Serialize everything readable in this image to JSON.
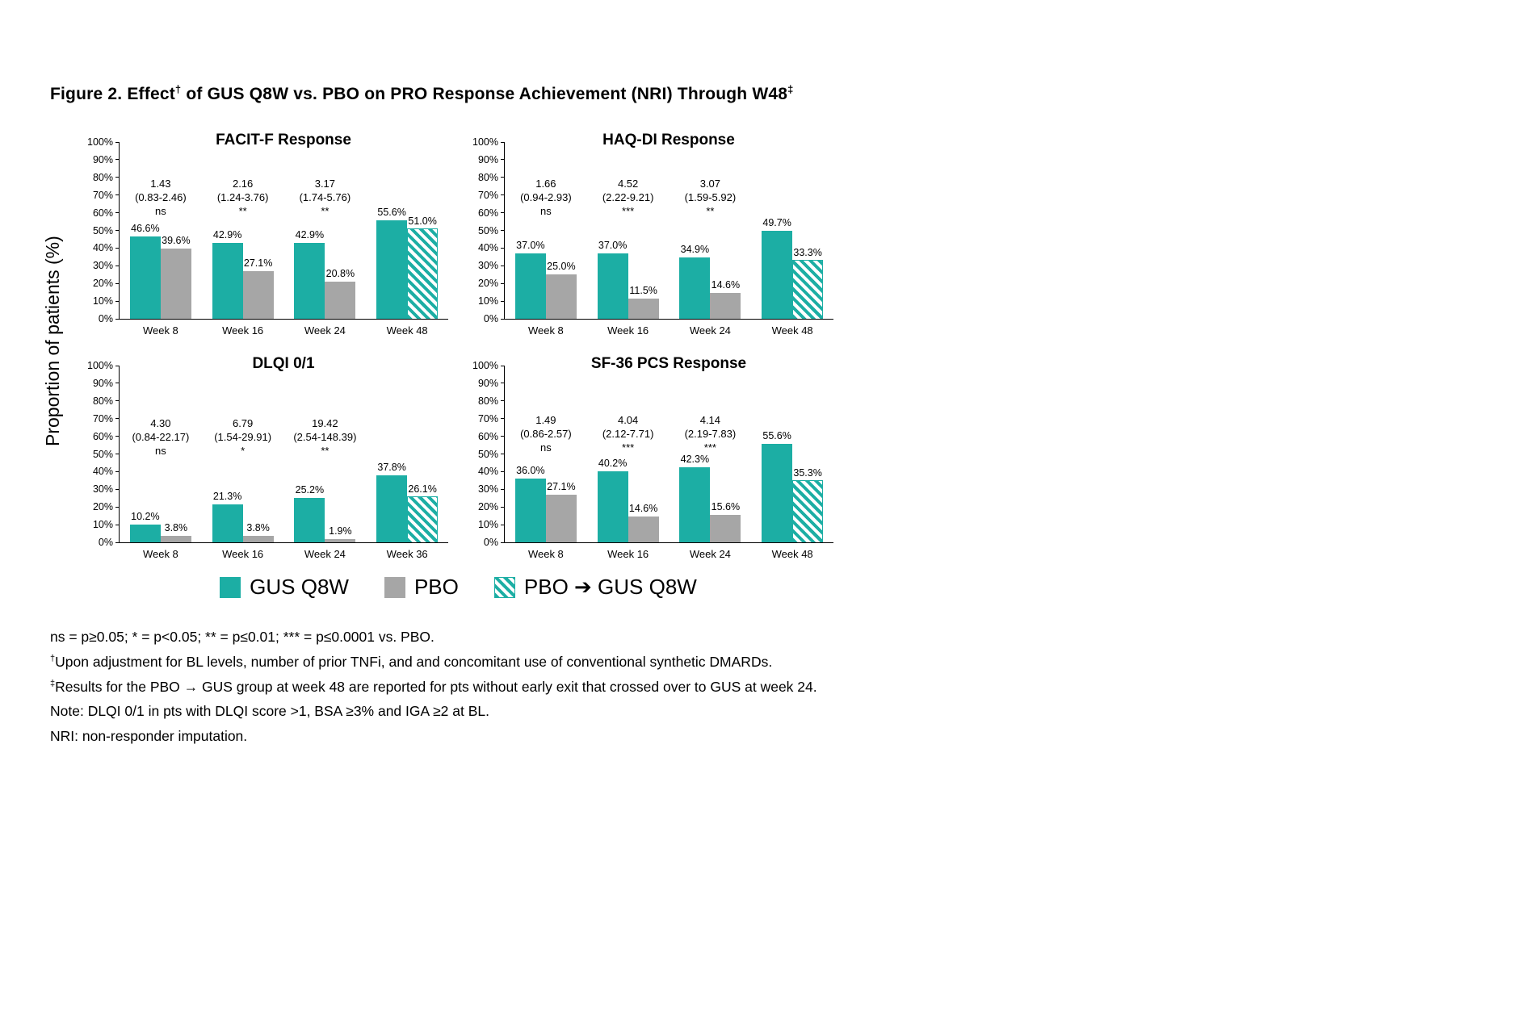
{
  "title": {
    "part1": "Figure 2. Effect",
    "sup1": "†",
    "part2": " of GUS Q8W vs. PBO on PRO Response Achievement (NRI) Through W48",
    "sup2": "‡"
  },
  "y_axis_label": "Proportion of patients (%)",
  "colors": {
    "gus": "#1CAEA4",
    "pbo": "#A6A6A6",
    "axis": "#000000"
  },
  "legend": [
    {
      "label": "GUS Q8W",
      "swatch": "gus"
    },
    {
      "label": "PBO",
      "swatch": "pbo"
    },
    {
      "label": "PBO ➔ GUS Q8W",
      "swatch": "crossover"
    }
  ],
  "footnotes": [
    {
      "sup": "",
      "text": "ns = p≥0.05; * = p<0.05; ** = p≤0.01; *** = p≤0.0001 vs. PBO."
    },
    {
      "sup": "†",
      "text": "Upon adjustment for BL levels, number of prior TNFi, and and concomitant use of conventional synthetic DMARDs."
    },
    {
      "sup": "‡",
      "text": "Results for the PBO → GUS group at week 48 are reported for pts without early exit that crossed over to GUS at week 24."
    },
    {
      "sup": "",
      "text": "Note: DLQI 0/1 in pts with DLQI score >1, BSA ≥3% and IGA ≥2 at BL."
    },
    {
      "sup": "",
      "text": "NRI: non-responder imputation."
    }
  ],
  "chart_data": [
    {
      "type": "bar",
      "title": "FACIT-F Response",
      "ylabel": "Proportion of patients (%)",
      "ylim": [
        0,
        100
      ],
      "ytick_step": 10,
      "ann_bottom_pct": 57,
      "groups": [
        {
          "category": "Week 8",
          "bars": [
            {
              "series": "GUS Q8W",
              "style": "gus",
              "value": 46.6
            },
            {
              "series": "PBO",
              "style": "pbo",
              "value": 39.6
            }
          ],
          "annotation": {
            "odds_ratio": "1.43",
            "ci": "(0.83-2.46)",
            "significance": "ns"
          }
        },
        {
          "category": "Week 16",
          "bars": [
            {
              "series": "GUS Q8W",
              "style": "gus",
              "value": 42.9
            },
            {
              "series": "PBO",
              "style": "pbo",
              "value": 27.1
            }
          ],
          "annotation": {
            "odds_ratio": "2.16",
            "ci": "(1.24-3.76)",
            "significance": "**"
          }
        },
        {
          "category": "Week 24",
          "bars": [
            {
              "series": "GUS Q8W",
              "style": "gus",
              "value": 42.9
            },
            {
              "series": "PBO",
              "style": "pbo",
              "value": 20.8
            }
          ],
          "annotation": {
            "odds_ratio": "3.17",
            "ci": "(1.74-5.76)",
            "significance": "**"
          }
        },
        {
          "category": "Week 48",
          "bars": [
            {
              "series": "GUS Q8W",
              "style": "gus",
              "value": 55.6
            },
            {
              "series": "PBO ➔ GUS Q8W",
              "style": "crossover",
              "value": 51.0
            }
          ],
          "annotation": null
        }
      ]
    },
    {
      "type": "bar",
      "title": "HAQ-DI Response",
      "ylabel": "Proportion of patients (%)",
      "ylim": [
        0,
        100
      ],
      "ytick_step": 10,
      "ann_bottom_pct": 57,
      "groups": [
        {
          "category": "Week 8",
          "bars": [
            {
              "series": "GUS Q8W",
              "style": "gus",
              "value": 37.0
            },
            {
              "series": "PBO",
              "style": "pbo",
              "value": 25.0
            }
          ],
          "annotation": {
            "odds_ratio": "1.66",
            "ci": "(0.94-2.93)",
            "significance": "ns"
          }
        },
        {
          "category": "Week 16",
          "bars": [
            {
              "series": "GUS Q8W",
              "style": "gus",
              "value": 37.0
            },
            {
              "series": "PBO",
              "style": "pbo",
              "value": 11.5
            }
          ],
          "annotation": {
            "odds_ratio": "4.52",
            "ci": "(2.22-9.21)",
            "significance": "***"
          }
        },
        {
          "category": "Week 24",
          "bars": [
            {
              "series": "GUS Q8W",
              "style": "gus",
              "value": 34.9
            },
            {
              "series": "PBO",
              "style": "pbo",
              "value": 14.6
            }
          ],
          "annotation": {
            "odds_ratio": "3.07",
            "ci": "(1.59-5.92)",
            "significance": "**"
          }
        },
        {
          "category": "Week 48",
          "bars": [
            {
              "series": "GUS Q8W",
              "style": "gus",
              "value": 49.7
            },
            {
              "series": "PBO ➔ GUS Q8W",
              "style": "crossover",
              "value": 33.3
            }
          ],
          "annotation": null
        }
      ]
    },
    {
      "type": "bar",
      "title": "DLQI 0/1",
      "ylabel": "Proportion of patients (%)",
      "ylim": [
        0,
        100
      ],
      "ytick_step": 10,
      "ann_bottom_pct": 48,
      "groups": [
        {
          "category": "Week 8",
          "bars": [
            {
              "series": "GUS Q8W",
              "style": "gus",
              "value": 10.2
            },
            {
              "series": "PBO",
              "style": "pbo",
              "value": 3.8
            }
          ],
          "annotation": {
            "odds_ratio": "4.30",
            "ci": "(0.84-22.17)",
            "significance": "ns"
          }
        },
        {
          "category": "Week 16",
          "bars": [
            {
              "series": "GUS Q8W",
              "style": "gus",
              "value": 21.3
            },
            {
              "series": "PBO",
              "style": "pbo",
              "value": 3.8
            }
          ],
          "annotation": {
            "odds_ratio": "6.79",
            "ci": "(1.54-29.91)",
            "significance": "*"
          }
        },
        {
          "category": "Week 24",
          "bars": [
            {
              "series": "GUS Q8W",
              "style": "gus",
              "value": 25.2
            },
            {
              "series": "PBO",
              "style": "pbo",
              "value": 1.9
            }
          ],
          "annotation": {
            "odds_ratio": "19.42",
            "ci": "(2.54-148.39)",
            "significance": "**"
          }
        },
        {
          "category": "Week 36",
          "bars": [
            {
              "series": "GUS Q8W",
              "style": "gus",
              "value": 37.8
            },
            {
              "series": "PBO ➔ GUS Q8W",
              "style": "crossover",
              "value": 26.1
            }
          ],
          "annotation": null
        }
      ]
    },
    {
      "type": "bar",
      "title": "SF-36 PCS Response",
      "ylabel": "Proportion of patients (%)",
      "ylim": [
        0,
        100
      ],
      "ytick_step": 10,
      "ann_bottom_pct": 50,
      "groups": [
        {
          "category": "Week 8",
          "bars": [
            {
              "series": "GUS Q8W",
              "style": "gus",
              "value": 36.0
            },
            {
              "series": "PBO",
              "style": "pbo",
              "value": 27.1
            }
          ],
          "annotation": {
            "odds_ratio": "1.49",
            "ci": "(0.86-2.57)",
            "significance": "ns"
          }
        },
        {
          "category": "Week 16",
          "bars": [
            {
              "series": "GUS Q8W",
              "style": "gus",
              "value": 40.2
            },
            {
              "series": "PBO",
              "style": "pbo",
              "value": 14.6
            }
          ],
          "annotation": {
            "odds_ratio": "4.04",
            "ci": "(2.12-7.71)",
            "significance": "***"
          }
        },
        {
          "category": "Week 24",
          "bars": [
            {
              "series": "GUS Q8W",
              "style": "gus",
              "value": 42.3
            },
            {
              "series": "PBO",
              "style": "pbo",
              "value": 15.6
            }
          ],
          "annotation": {
            "odds_ratio": "4.14",
            "ci": "(2.19-7.83)",
            "significance": "***"
          }
        },
        {
          "category": "Week 48",
          "bars": [
            {
              "series": "GUS Q8W",
              "style": "gus",
              "value": 55.6
            },
            {
              "series": "PBO ➔ GUS Q8W",
              "style": "crossover",
              "value": 35.3
            }
          ],
          "annotation": null
        }
      ]
    }
  ]
}
